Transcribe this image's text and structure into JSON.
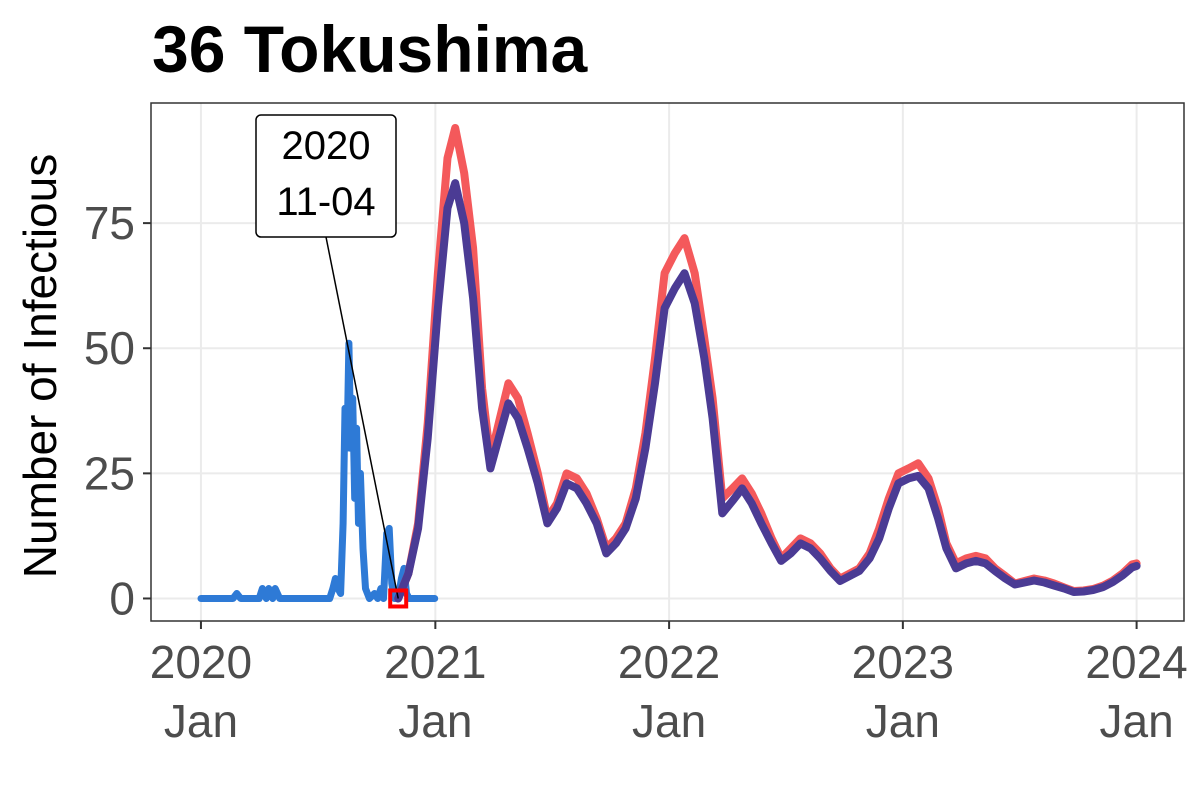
{
  "chart_data": {
    "type": "line",
    "title": "36 Tokushima",
    "xlabel": "",
    "ylabel": "Number of Infectious",
    "xlim": [
      "2019-10-15",
      "2024-03-15"
    ],
    "ylim": [
      -4.5,
      99
    ],
    "grid": true,
    "legend": "none",
    "x_ticks": [
      {
        "date": "2020-01-01",
        "label_year": "2020",
        "label_month": "Jan"
      },
      {
        "date": "2021-01-01",
        "label_year": "2021",
        "label_month": "Jan"
      },
      {
        "date": "2022-01-01",
        "label_year": "2022",
        "label_month": "Jan"
      },
      {
        "date": "2023-01-01",
        "label_year": "2023",
        "label_month": "Jan"
      },
      {
        "date": "2024-01-01",
        "label_year": "2024",
        "label_month": "Jan"
      }
    ],
    "y_ticks": [
      0,
      25,
      50,
      75
    ],
    "series": [
      {
        "color": "#2e7ad6",
        "points": [
          [
            "2020-01-01",
            0
          ],
          [
            "2020-02-20",
            0
          ],
          [
            "2020-02-26",
            1
          ],
          [
            "2020-03-03",
            0
          ],
          [
            "2020-04-01",
            0
          ],
          [
            "2020-04-06",
            2
          ],
          [
            "2020-04-12",
            0
          ],
          [
            "2020-04-16",
            2
          ],
          [
            "2020-04-22",
            0
          ],
          [
            "2020-04-26",
            2
          ],
          [
            "2020-05-03",
            0
          ],
          [
            "2020-07-20",
            0
          ],
          [
            "2020-07-25",
            2
          ],
          [
            "2020-07-29",
            4
          ],
          [
            "2020-08-02",
            2
          ],
          [
            "2020-08-06",
            1
          ],
          [
            "2020-08-10",
            15
          ],
          [
            "2020-08-13",
            38
          ],
          [
            "2020-08-16",
            30
          ],
          [
            "2020-08-19",
            51
          ],
          [
            "2020-08-22",
            30
          ],
          [
            "2020-08-25",
            40
          ],
          [
            "2020-08-28",
            20
          ],
          [
            "2020-08-31",
            34
          ],
          [
            "2020-09-03",
            15
          ],
          [
            "2020-09-06",
            25
          ],
          [
            "2020-09-10",
            10
          ],
          [
            "2020-09-14",
            2
          ],
          [
            "2020-09-20",
            0
          ],
          [
            "2020-09-28",
            1
          ],
          [
            "2020-10-03",
            0
          ],
          [
            "2020-10-08",
            2
          ],
          [
            "2020-10-12",
            0
          ],
          [
            "2020-10-17",
            13
          ],
          [
            "2020-10-21",
            14
          ],
          [
            "2020-10-25",
            3
          ],
          [
            "2020-10-29",
            0
          ],
          [
            "2020-11-04",
            0
          ],
          [
            "2020-11-09",
            4
          ],
          [
            "2020-11-13",
            6
          ],
          [
            "2020-11-17",
            1
          ],
          [
            "2020-11-21",
            0
          ],
          [
            "2020-12-31",
            0
          ]
        ]
      },
      {
        "color": "#f4595b",
        "points": [
          [
            "2020-11-04",
            0
          ],
          [
            "2020-11-20",
            5
          ],
          [
            "2020-12-05",
            15
          ],
          [
            "2020-12-20",
            35
          ],
          [
            "2021-01-05",
            65
          ],
          [
            "2021-01-20",
            88
          ],
          [
            "2021-02-01",
            94
          ],
          [
            "2021-02-15",
            85
          ],
          [
            "2021-03-01",
            70
          ],
          [
            "2021-03-15",
            42
          ],
          [
            "2021-03-28",
            28
          ],
          [
            "2021-04-10",
            35
          ],
          [
            "2021-04-25",
            43
          ],
          [
            "2021-05-10",
            40
          ],
          [
            "2021-05-25",
            33
          ],
          [
            "2021-06-10",
            25
          ],
          [
            "2021-06-25",
            16
          ],
          [
            "2021-07-10",
            19
          ],
          [
            "2021-07-25",
            25
          ],
          [
            "2021-08-10",
            24
          ],
          [
            "2021-08-25",
            21
          ],
          [
            "2021-09-10",
            16
          ],
          [
            "2021-09-25",
            10
          ],
          [
            "2021-10-10",
            12
          ],
          [
            "2021-10-25",
            15
          ],
          [
            "2021-11-10",
            22
          ],
          [
            "2021-11-25",
            33
          ],
          [
            "2021-12-10",
            48
          ],
          [
            "2021-12-25",
            65
          ],
          [
            "2022-01-10",
            69
          ],
          [
            "2022-01-25",
            72
          ],
          [
            "2022-02-10",
            65
          ],
          [
            "2022-02-25",
            52
          ],
          [
            "2022-03-10",
            40
          ],
          [
            "2022-03-25",
            20
          ],
          [
            "2022-04-10",
            22
          ],
          [
            "2022-04-25",
            24
          ],
          [
            "2022-05-10",
            21
          ],
          [
            "2022-05-25",
            17
          ],
          [
            "2022-06-10",
            12
          ],
          [
            "2022-06-25",
            8
          ],
          [
            "2022-07-10",
            10
          ],
          [
            "2022-07-25",
            12
          ],
          [
            "2022-08-10",
            11
          ],
          [
            "2022-08-25",
            9
          ],
          [
            "2022-09-10",
            6
          ],
          [
            "2022-09-25",
            4
          ],
          [
            "2022-10-10",
            5
          ],
          [
            "2022-10-25",
            6
          ],
          [
            "2022-11-10",
            9
          ],
          [
            "2022-11-25",
            14
          ],
          [
            "2022-12-10",
            20
          ],
          [
            "2022-12-25",
            25
          ],
          [
            "2023-01-10",
            26
          ],
          [
            "2023-01-25",
            27
          ],
          [
            "2023-02-10",
            24
          ],
          [
            "2023-02-25",
            18
          ],
          [
            "2023-03-10",
            11
          ],
          [
            "2023-03-25",
            7
          ],
          [
            "2023-04-10",
            8
          ],
          [
            "2023-04-25",
            8.5
          ],
          [
            "2023-05-10",
            8
          ],
          [
            "2023-05-25",
            6
          ],
          [
            "2023-06-10",
            4.5
          ],
          [
            "2023-06-25",
            3
          ],
          [
            "2023-07-10",
            3.5
          ],
          [
            "2023-07-25",
            4
          ],
          [
            "2023-08-10",
            3.6
          ],
          [
            "2023-08-25",
            3
          ],
          [
            "2023-09-10",
            2.2
          ],
          [
            "2023-09-25",
            1.5
          ],
          [
            "2023-10-10",
            1.6
          ],
          [
            "2023-10-25",
            1.9
          ],
          [
            "2023-11-10",
            2.6
          ],
          [
            "2023-11-25",
            3.6
          ],
          [
            "2023-12-10",
            5
          ],
          [
            "2023-12-25",
            6.8
          ],
          [
            "2024-01-01",
            7
          ]
        ]
      },
      {
        "color": "#4b3b94",
        "points": [
          [
            "2020-11-04",
            0
          ],
          [
            "2020-11-20",
            5
          ],
          [
            "2020-12-05",
            14
          ],
          [
            "2020-12-20",
            32
          ],
          [
            "2021-01-05",
            58
          ],
          [
            "2021-01-20",
            78
          ],
          [
            "2021-02-01",
            83
          ],
          [
            "2021-02-15",
            75
          ],
          [
            "2021-03-01",
            60
          ],
          [
            "2021-03-15",
            38
          ],
          [
            "2021-03-28",
            26
          ],
          [
            "2021-04-10",
            32
          ],
          [
            "2021-04-25",
            39
          ],
          [
            "2021-05-10",
            36
          ],
          [
            "2021-05-25",
            30
          ],
          [
            "2021-06-10",
            23
          ],
          [
            "2021-06-25",
            15
          ],
          [
            "2021-07-10",
            18
          ],
          [
            "2021-07-25",
            23
          ],
          [
            "2021-08-10",
            22
          ],
          [
            "2021-08-25",
            19
          ],
          [
            "2021-09-10",
            15
          ],
          [
            "2021-09-25",
            9
          ],
          [
            "2021-10-10",
            11
          ],
          [
            "2021-10-25",
            14
          ],
          [
            "2021-11-10",
            20
          ],
          [
            "2021-11-25",
            30
          ],
          [
            "2021-12-10",
            43
          ],
          [
            "2021-12-25",
            58
          ],
          [
            "2022-01-10",
            62
          ],
          [
            "2022-01-25",
            65
          ],
          [
            "2022-02-10",
            59
          ],
          [
            "2022-02-25",
            48
          ],
          [
            "2022-03-10",
            36
          ],
          [
            "2022-03-25",
            17
          ],
          [
            "2022-04-10",
            19.5
          ],
          [
            "2022-04-25",
            22
          ],
          [
            "2022-05-10",
            19
          ],
          [
            "2022-05-25",
            15
          ],
          [
            "2022-06-10",
            11
          ],
          [
            "2022-06-25",
            7.5
          ],
          [
            "2022-07-10",
            9
          ],
          [
            "2022-07-25",
            11
          ],
          [
            "2022-08-10",
            10
          ],
          [
            "2022-08-25",
            8
          ],
          [
            "2022-09-10",
            5.5
          ],
          [
            "2022-09-25",
            3.5
          ],
          [
            "2022-10-10",
            4.5
          ],
          [
            "2022-10-25",
            5.5
          ],
          [
            "2022-11-10",
            8
          ],
          [
            "2022-11-25",
            12
          ],
          [
            "2022-12-10",
            18
          ],
          [
            "2022-12-25",
            23
          ],
          [
            "2023-01-10",
            24
          ],
          [
            "2023-01-25",
            24.5
          ],
          [
            "2023-02-10",
            22
          ],
          [
            "2023-02-25",
            16
          ],
          [
            "2023-03-10",
            10
          ],
          [
            "2023-03-25",
            6
          ],
          [
            "2023-04-10",
            7
          ],
          [
            "2023-04-25",
            7.5
          ],
          [
            "2023-05-10",
            7
          ],
          [
            "2023-05-25",
            5.5
          ],
          [
            "2023-06-10",
            4
          ],
          [
            "2023-06-25",
            2.8
          ],
          [
            "2023-07-10",
            3.2
          ],
          [
            "2023-07-25",
            3.6
          ],
          [
            "2023-08-10",
            3.2
          ],
          [
            "2023-08-25",
            2.6
          ],
          [
            "2023-09-10",
            2
          ],
          [
            "2023-09-25",
            1.3
          ],
          [
            "2023-10-10",
            1.4
          ],
          [
            "2023-10-25",
            1.7
          ],
          [
            "2023-11-10",
            2.3
          ],
          [
            "2023-11-25",
            3.3
          ],
          [
            "2023-12-10",
            4.6
          ],
          [
            "2023-12-25",
            6.2
          ],
          [
            "2024-01-01",
            6.5
          ]
        ]
      }
    ],
    "annotation": {
      "x": "2020-11-04",
      "y": 0,
      "line1": "2020",
      "line2": "11-04",
      "marker_color": "#ff0000"
    }
  }
}
